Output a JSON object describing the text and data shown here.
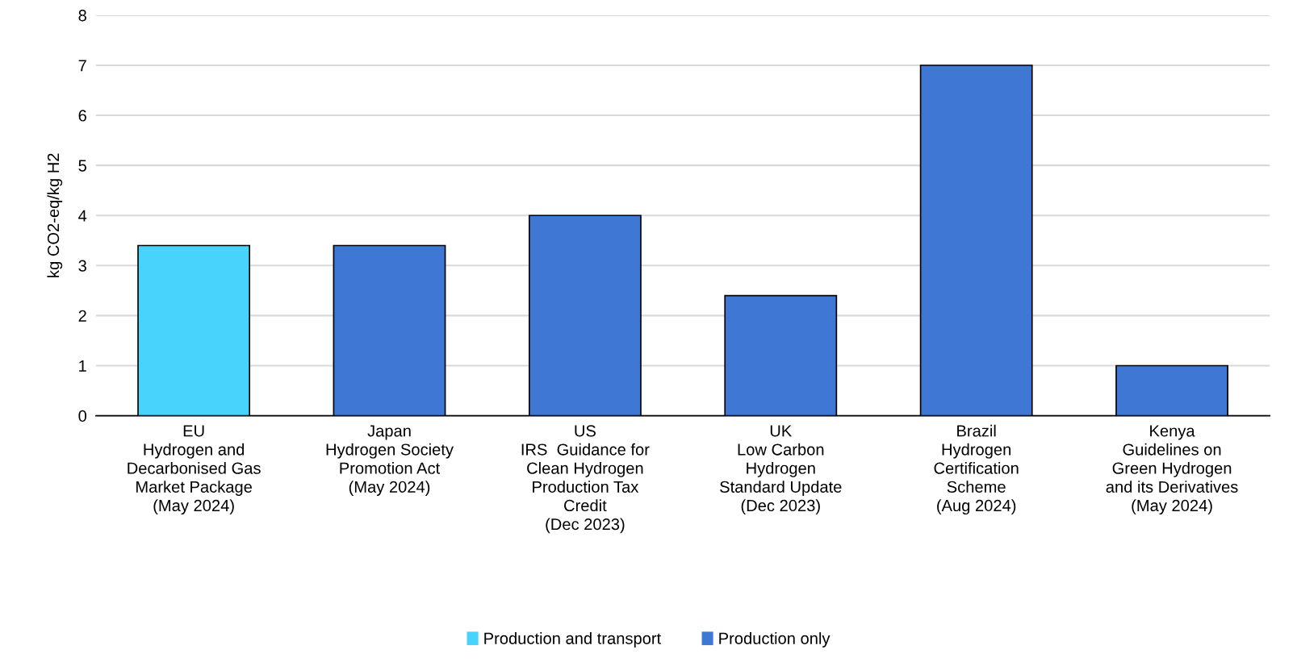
{
  "chart_data": {
    "type": "bar",
    "ylabel": "kg CO2-eq/kg H2",
    "categories": [
      "EU\nHydrogen and\nDecarbonised Gas\nMarket Package\n(May 2024)",
      "Japan\nHydrogen Society\nPromotion Act\n(May 2024)",
      "US\nIRS  Guidance for\nClean Hydrogen\nProduction Tax\nCredit\n(Dec 2023)",
      "UK\nLow Carbon\nHydrogen\nStandard Update\n(Dec 2023)",
      "Brazil\nHydrogen\nCertification\nScheme\n(Aug 2024)",
      "Kenya\nGuidelines on\nGreen Hydrogen\nand its Derivatives\n(May 2024)"
    ],
    "series": [
      {
        "name": "Production and transport",
        "color": "#47d3fc",
        "values": [
          3.4,
          null,
          null,
          null,
          null,
          null
        ]
      },
      {
        "name": "Production only",
        "color": "#3e78d4",
        "values": [
          null,
          3.4,
          4,
          2.4,
          7,
          1
        ]
      }
    ],
    "ylim": [
      0,
      8
    ],
    "yticks": [
      0,
      1,
      2,
      3,
      4,
      5,
      6,
      7,
      8
    ],
    "grid": "y",
    "legend": "bottom"
  }
}
